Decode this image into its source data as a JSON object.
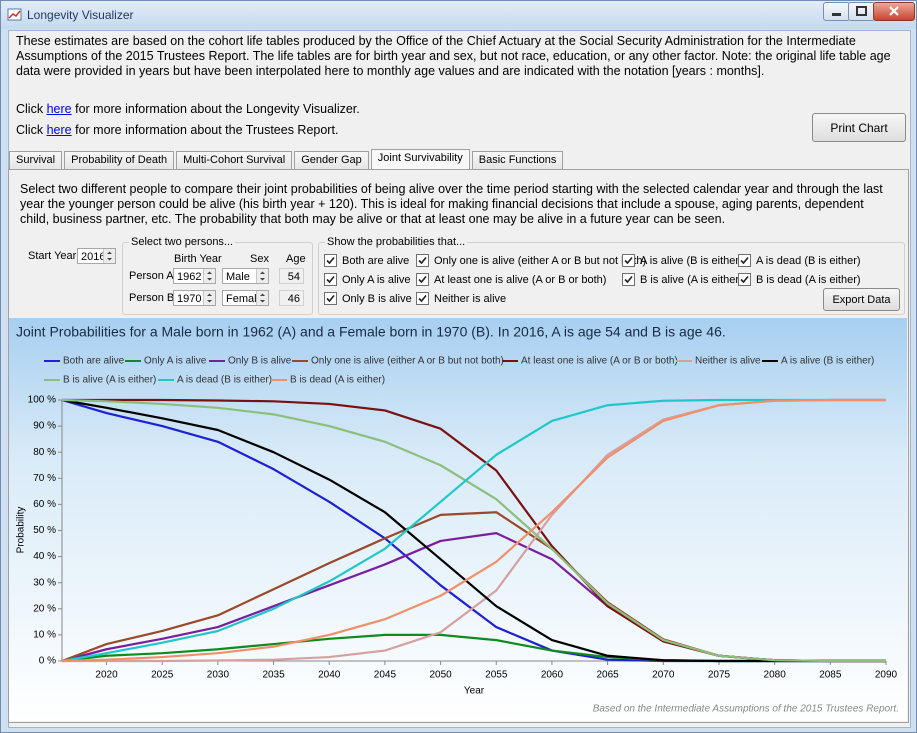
{
  "window": {
    "title": "Longevity Visualizer"
  },
  "intro": "These estimates are based on the cohort life tables produced by the Office of the Chief Actuary at the Social Security Administration for the Intermediate Assumptions of the 2015 Trustees Report. The life tables are for birth year and sex, but not race, education, or any other factor. Note: the original life table age data were provided in years but have been interpolated here to monthly age values and are indicated with the notation [years : months].",
  "links": [
    {
      "before": "Click",
      "link": "here",
      "after": "for more information about the Longevity Visualizer."
    },
    {
      "before": "Click",
      "link": "here",
      "after": "for more information about the Trustees Report."
    }
  ],
  "print_button": "Print Chart",
  "tabs": {
    "items": [
      "Survival",
      "Probability of Death",
      "Multi-Cohort Survival",
      "Gender Gap",
      "Joint Survivability",
      "Basic Functions"
    ],
    "selected": 4
  },
  "panel": {
    "description": "Select two different people to compare their joint probabilities of being alive over the time period starting with the selected calendar year and through the last year the younger person could be alive (his birth year + 120). This is ideal for making financial decisions that include a spouse, aging parents, dependent child, business partner, etc. The probability that both may be alive or that at least one may be alive in a future year can be seen.",
    "start_year_label": "Start Year",
    "start_year": 2016,
    "persons_group": {
      "title": "Select two persons...",
      "headers": [
        "Birth Year",
        "Sex",
        "Age"
      ],
      "rows": [
        {
          "label": "Person A",
          "birth_year": 1962,
          "sex": "Male",
          "age": 54
        },
        {
          "label": "Person B",
          "birth_year": 1970,
          "sex": "Female",
          "age": 46
        }
      ]
    },
    "options_group": {
      "title": "Show the probabilities that...",
      "checkboxes": [
        {
          "label": "Both are alive",
          "checked": true
        },
        {
          "label": "Only A is alive",
          "checked": true
        },
        {
          "label": "Only B is alive",
          "checked": true
        },
        {
          "label": "Only one is alive (either A or B but not both)",
          "checked": true
        },
        {
          "label": "At least one is alive (A or B or both)",
          "checked": true
        },
        {
          "label": "Neither is alive",
          "checked": true
        },
        {
          "label": "A is alive (B is either)",
          "checked": true
        },
        {
          "label": "B is alive (A is either)",
          "checked": true
        },
        {
          "label": "A is dead (B is either)",
          "checked": true
        },
        {
          "label": "B is dead (A is either)",
          "checked": true
        }
      ]
    },
    "export_button": "Export Data"
  },
  "chart_data": {
    "type": "line",
    "title": "Joint Probabilities for a Male born in 1962 (A) and a Female born in 1970 (B). In 2016, A is age 54 and B is age 46.",
    "x_label": "Year",
    "y_label": "Probability",
    "footnote": "Based on the Intermediate Assumptions of the 2015 Trustees Report.",
    "x": [
      2016,
      2020,
      2025,
      2030,
      2035,
      2040,
      2045,
      2050,
      2055,
      2060,
      2065,
      2070,
      2075,
      2080,
      2085,
      2090
    ],
    "series": [
      {
        "name": "Both are alive",
        "color": "#1f1fd6",
        "values": [
          100,
          95,
          90,
          84,
          73.5,
          61,
          47,
          29,
          13,
          4,
          0.5,
          0,
          0,
          0,
          0,
          0
        ]
      },
      {
        "name": "Only A is alive",
        "color": "#0e8a1e",
        "values": [
          0,
          2,
          3,
          4.5,
          6.5,
          8.5,
          10,
          10,
          8,
          4,
          1.5,
          0.3,
          0,
          0,
          0,
          0
        ]
      },
      {
        "name": "Only B is alive",
        "color": "#7a1ea0",
        "values": [
          0,
          4.5,
          8.5,
          13,
          21,
          29,
          37,
          46,
          49,
          39,
          21,
          8,
          2,
          0.3,
          0,
          0
        ]
      },
      {
        "name": "Only one is alive (either A or B but not both)",
        "color": "#9a4a2a",
        "values": [
          0,
          6.5,
          11.5,
          17.5,
          27.5,
          37.5,
          47,
          56,
          57,
          43,
          22.5,
          8.3,
          2,
          0.3,
          0,
          0
        ]
      },
      {
        "name": "At least one is alive (A or B or both)",
        "color": "#7a1010",
        "values": [
          100,
          100,
          100,
          99.8,
          99.5,
          98.5,
          96,
          89,
          73,
          44,
          21,
          7.5,
          2,
          0.3,
          0,
          0
        ]
      },
      {
        "name": "Neither is alive",
        "color": "#d6a0a0",
        "values": [
          0,
          0,
          0,
          0.2,
          0.5,
          1.5,
          4,
          11,
          27,
          56,
          79,
          92.5,
          98,
          99.7,
          100,
          100
        ]
      },
      {
        "name": "A is alive (B is either)",
        "color": "#000000",
        "values": [
          100,
          97,
          93,
          88.5,
          80,
          69.5,
          57,
          39,
          21,
          8,
          2,
          0.3,
          0,
          0,
          0,
          0
        ]
      },
      {
        "name": "B is alive (A is either)",
        "color": "#8cbf7c",
        "values": [
          100,
          99.5,
          98.5,
          97,
          94.5,
          90,
          84,
          75,
          62,
          43,
          22,
          8,
          2,
          0.3,
          0,
          0
        ]
      },
      {
        "name": "A is dead (B is either)",
        "color": "#1ec8c8",
        "values": [
          0,
          3,
          7,
          11.5,
          20,
          30.5,
          43,
          61,
          79,
          92,
          98,
          99.7,
          100,
          100,
          100,
          100
        ]
      },
      {
        "name": "B is dead (A is either)",
        "color": "#f0906a",
        "values": [
          0,
          0.5,
          1.5,
          3,
          5.5,
          10,
          16,
          25,
          38,
          57,
          78,
          92,
          98,
          99.7,
          100,
          100
        ]
      }
    ],
    "xlim": [
      2016,
      2090
    ],
    "ylim": [
      0,
      100
    ],
    "xticks": [
      2020,
      2025,
      2030,
      2035,
      2040,
      2045,
      2050,
      2055,
      2060,
      2065,
      2070,
      2075,
      2080,
      2085,
      2090
    ],
    "yticks": [
      {
        "value": 0,
        "label": "0 %"
      },
      {
        "value": 10,
        "label": "10 %"
      },
      {
        "value": 20,
        "label": "20 %"
      },
      {
        "value": 30,
        "label": "30 %"
      },
      {
        "value": 40,
        "label": "40 %"
      },
      {
        "value": 50,
        "label": "50 %"
      },
      {
        "value": 60,
        "label": "60 %"
      },
      {
        "value": 70,
        "label": "70 %"
      },
      {
        "value": 80,
        "label": "80 %"
      },
      {
        "value": 90,
        "label": "90 %"
      },
      {
        "value": 100,
        "label": "100 %"
      }
    ],
    "grid": false
  }
}
